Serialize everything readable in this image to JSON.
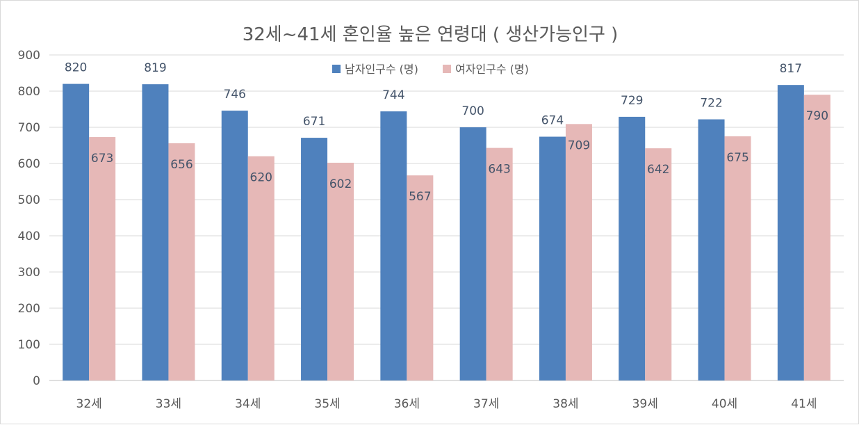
{
  "chart_data": {
    "type": "bar",
    "title": "32세~41세 혼인율 높은 연령대 ( 생산가능인구 )",
    "categories": [
      "32세",
      "33세",
      "34세",
      "35세",
      "36세",
      "37세",
      "38세",
      "39세",
      "40세",
      "41세"
    ],
    "series": [
      {
        "name": "남자인구수 (명)",
        "color": "#4f81bd",
        "values": [
          820,
          819,
          746,
          671,
          744,
          700,
          674,
          729,
          722,
          817
        ]
      },
      {
        "name": "여자인구수 (명)",
        "color": "#e6b8b7",
        "values": [
          673,
          656,
          620,
          602,
          567,
          643,
          709,
          642,
          675,
          790
        ]
      }
    ],
    "ylim": [
      0,
      900
    ],
    "yticks": [
      0,
      100,
      200,
      300,
      400,
      500,
      600,
      700,
      800,
      900
    ],
    "grid": true,
    "legend_position": "top-center",
    "data_labels": true
  }
}
